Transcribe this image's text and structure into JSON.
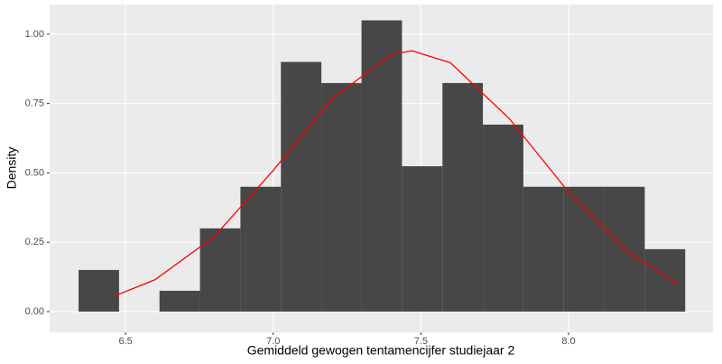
{
  "chart_data": {
    "type": "histogram",
    "x_label": "Gemiddeld gewogen tentamencijfer studiejaar 2",
    "y_label": "Density",
    "bins": [
      6.341,
      6.478,
      6.615,
      6.752,
      6.889,
      7.026,
      7.163,
      7.299,
      7.436,
      7.573,
      7.71,
      7.847,
      7.984,
      8.121,
      8.258,
      8.395
    ],
    "values": [
      0.15,
      0,
      0.075,
      0.3,
      0.45,
      0.9,
      0.824,
      1.05,
      0.524,
      0.824,
      0.674,
      0.45,
      0.45,
      0.45,
      0.225
    ],
    "color": "#474747",
    "curve": {
      "color": "#ff0000",
      "x": [
        6.46,
        6.6,
        6.8,
        7.0,
        7.2,
        7.4,
        7.47,
        7.6,
        7.8,
        8.0,
        8.2,
        8.37
      ],
      "values": [
        0.055,
        0.115,
        0.27,
        0.509,
        0.768,
        0.927,
        0.94,
        0.897,
        0.695,
        0.431,
        0.214,
        0.099
      ]
    },
    "xlim": [
      6.243,
      8.489
    ],
    "ylim": [
      -0.075,
      1.107
    ],
    "xticks": [
      6.5,
      {
        "value": 7.0,
        "label": "7.0"
      },
      7.5,
      {
        "value": 8.0,
        "label": "8.0"
      }
    ],
    "yticks": [
      {
        "value": 0,
        "label": "0.00"
      },
      {
        "value": 0.25,
        "label": "0.25"
      },
      {
        "value": 0.5,
        "label": "0.50"
      },
      {
        "value": 0.75,
        "label": "0.75"
      },
      {
        "value": 1,
        "label": "1.00"
      }
    ],
    "grid": true
  }
}
